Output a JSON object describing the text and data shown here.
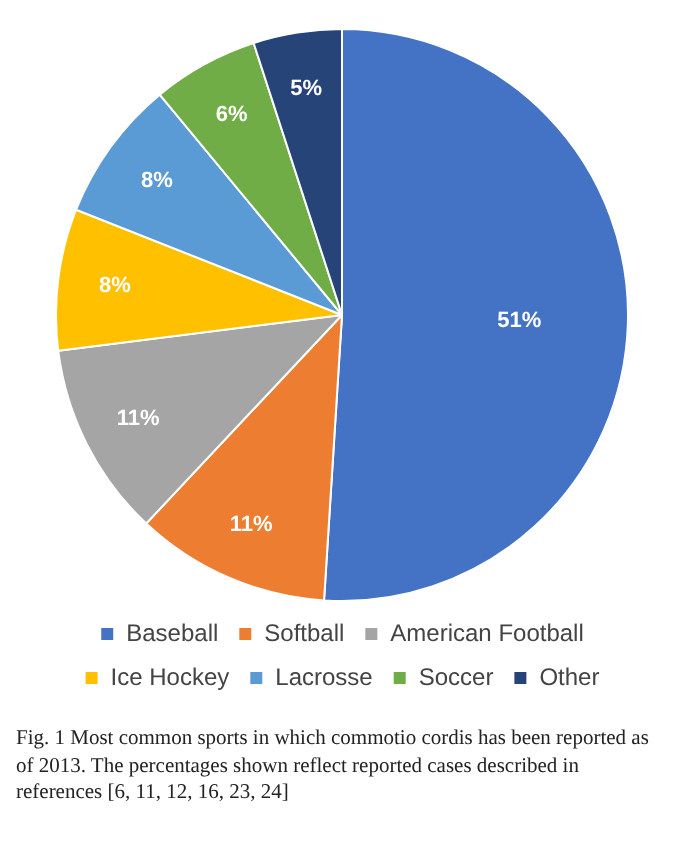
{
  "chart_data": {
    "type": "pie",
    "categories": [
      "Baseball",
      "Softball",
      "American Football",
      "Ice Hockey",
      "Lacrosse",
      "Soccer",
      "Other"
    ],
    "values": [
      51,
      11,
      11,
      8,
      8,
      6,
      5
    ],
    "colors": [
      "#4472c4",
      "#ed7d31",
      "#a5a5a5",
      "#ffc000",
      "#5b9bd5",
      "#70ad47",
      "#264478"
    ],
    "value_labels": [
      "51%",
      "11%",
      "11%",
      "8%",
      "8%",
      "6%",
      "5%"
    ],
    "legend": "bottom",
    "annotations": [
      "Fig. 1 Most common sports in which commotio cordis has been reported as of 2013. The percentages shown reflect reported cases described in references [6, 11, 12, 16, 23, 24]"
    ]
  }
}
